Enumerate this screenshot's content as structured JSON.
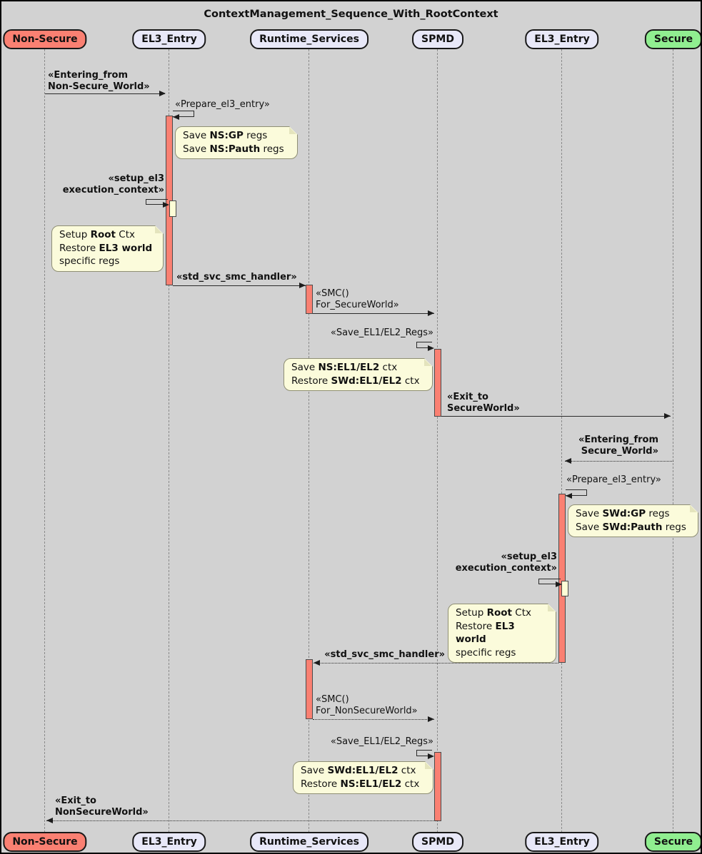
{
  "title": "ContextManagement_Sequence_With_RootContext",
  "colors": {
    "background": "#D2D2D2",
    "participant_default_fill": "#E8E8F8",
    "participant_non_secure_fill": "#FA8072",
    "participant_secure_fill": "#90EE90",
    "activation_fill": "#FA8072",
    "nested_activation_fill": "#FDFDD6",
    "note_fill": "#FBFBDB",
    "line": "#2B2B2B"
  },
  "participants": [
    {
      "name": "Non-Secure"
    },
    {
      "name": "EL3_Entry"
    },
    {
      "name": "Runtime_Services"
    },
    {
      "name": "SPMD"
    },
    {
      "name": "EL3_Entry"
    },
    {
      "name": "Secure"
    }
  ],
  "messages": {
    "entering_from_ns": "«Entering_from\nNon-Secure_World»",
    "prepare_el3_entry_1": "«Prepare_el3_entry»",
    "setup_el3_1": "«setup_el3\nexecution_context»",
    "std_svc_smc_handler_1": "«std_svc_smc_handler»",
    "smc_for_secure": "«SMC()\nFor_SecureWorld»",
    "save_el1_el2_regs_1": "«Save_EL1/EL2_Regs»",
    "exit_to_secure": "«Exit_to\nSecureWorld»",
    "entering_from_secure": "«Entering_from\nSecure_World»",
    "prepare_el3_entry_2": "«Prepare_el3_entry»",
    "setup_el3_2": "«setup_el3\nexecution_context»",
    "std_svc_smc_handler_2": "«std_svc_smc_handler»",
    "smc_for_nonsecure": "«SMC()\nFor_NonSecureWorld»",
    "save_el1_el2_regs_2": "«Save_EL1/EL2_Regs»",
    "exit_to_nonsecure": "«Exit_to\nNonSecureWorld»"
  },
  "notes": {
    "save_ns_gp": [
      [
        {
          "t": "Save ",
          "b": false
        },
        {
          "t": "NS:GP",
          "b": true
        },
        {
          "t": " regs",
          "b": false
        }
      ],
      [
        {
          "t": "Save ",
          "b": false
        },
        {
          "t": "NS:Pauth",
          "b": true
        },
        {
          "t": " regs",
          "b": false
        }
      ]
    ],
    "setup_root_1": [
      [
        {
          "t": "Setup ",
          "b": false
        },
        {
          "t": "Root",
          "b": true
        },
        {
          "t": " Ctx",
          "b": false
        }
      ],
      [
        {
          "t": "Restore ",
          "b": false
        },
        {
          "t": "EL3 world",
          "b": true
        }
      ],
      [
        {
          "t": "specific regs",
          "b": false
        }
      ]
    ],
    "save_ns_el1el2": [
      [
        {
          "t": "Save ",
          "b": false
        },
        {
          "t": "NS:EL1/EL2",
          "b": true
        },
        {
          "t": " ctx",
          "b": false
        }
      ],
      [
        {
          "t": "Restore ",
          "b": false
        },
        {
          "t": "SWd:EL1/EL2",
          "b": true
        },
        {
          "t": " ctx",
          "b": false
        }
      ]
    ],
    "save_swd_gp": [
      [
        {
          "t": "Save ",
          "b": false
        },
        {
          "t": "SWd:GP",
          "b": true
        },
        {
          "t": " regs",
          "b": false
        }
      ],
      [
        {
          "t": "Save ",
          "b": false
        },
        {
          "t": "SWd:Pauth",
          "b": true
        },
        {
          "t": " regs",
          "b": false
        }
      ]
    ],
    "setup_root_2": [
      [
        {
          "t": "Setup ",
          "b": false
        },
        {
          "t": "Root",
          "b": true
        },
        {
          "t": " Ctx",
          "b": false
        }
      ],
      [
        {
          "t": "Restore ",
          "b": false
        },
        {
          "t": "EL3 world",
          "b": true
        }
      ],
      [
        {
          "t": "specific regs",
          "b": false
        }
      ]
    ],
    "save_swd_el1el2": [
      [
        {
          "t": "Save ",
          "b": false
        },
        {
          "t": "SWd:EL1/EL2",
          "b": true
        },
        {
          "t": " ctx",
          "b": false
        }
      ],
      [
        {
          "t": "Restore ",
          "b": false
        },
        {
          "t": "NS:EL1/EL2",
          "b": true
        },
        {
          "t": " ctx",
          "b": false
        }
      ]
    ]
  }
}
